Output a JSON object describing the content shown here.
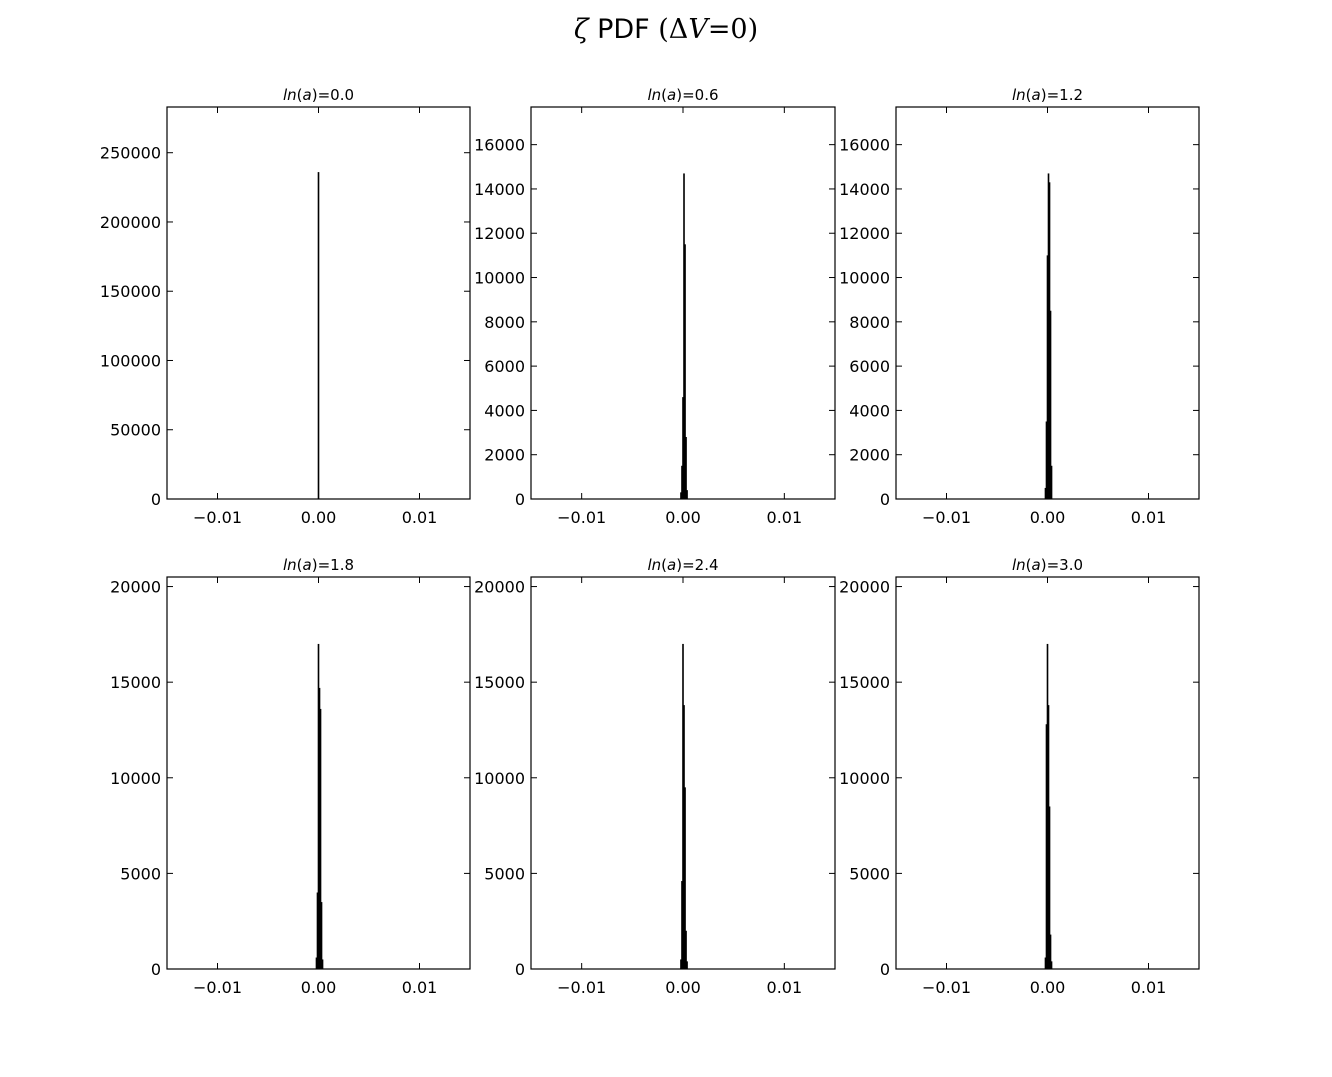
{
  "figure": {
    "title_symbol": "ζ",
    "title_text": "PDF",
    "title_math_open": "(Δ",
    "title_math_var": "V",
    "title_math_rest": "=0)"
  },
  "chart_data": [
    {
      "type": "bar",
      "title": "ln(a)=0.0",
      "xlim": [
        -0.015,
        0.015
      ],
      "ylim": [
        0,
        283000
      ],
      "xticks": [
        -0.01,
        0.0,
        0.01
      ],
      "xtick_labels": [
        "−0.01",
        "0.00",
        "0.01"
      ],
      "yticks": [
        0,
        50000,
        100000,
        150000,
        200000,
        250000
      ],
      "ytick_labels": [
        "0",
        "50000",
        "100000",
        "150000",
        "200000",
        "250000"
      ],
      "bins": [
        {
          "x": 0.0,
          "y": 236000
        }
      ],
      "grid": false
    },
    {
      "type": "bar",
      "title": "ln(a)=0.6",
      "xlim": [
        -0.015,
        0.015
      ],
      "ylim": [
        0,
        17700
      ],
      "xticks": [
        -0.01,
        0.0,
        0.01
      ],
      "xtick_labels": [
        "−0.01",
        "0.00",
        "0.01"
      ],
      "yticks": [
        0,
        2000,
        4000,
        6000,
        8000,
        10000,
        12000,
        14000,
        16000
      ],
      "ytick_labels": [
        "0",
        "2000",
        "4000",
        "6000",
        "8000",
        "10000",
        "12000",
        "14000",
        "16000"
      ],
      "bins": [
        {
          "x": -0.0002,
          "y": 300
        },
        {
          "x": -0.0001,
          "y": 1500
        },
        {
          "x": 0.0,
          "y": 4600
        },
        {
          "x": 0.0001,
          "y": 14700
        },
        {
          "x": 0.0002,
          "y": 11500
        },
        {
          "x": 0.0003,
          "y": 2800
        },
        {
          "x": 0.0004,
          "y": 400
        }
      ],
      "grid": false
    },
    {
      "type": "bar",
      "title": "ln(a)=1.2",
      "xlim": [
        -0.015,
        0.015
      ],
      "ylim": [
        0,
        17700
      ],
      "xticks": [
        -0.01,
        0.0,
        0.01
      ],
      "xtick_labels": [
        "−0.01",
        "0.00",
        "0.01"
      ],
      "yticks": [
        0,
        2000,
        4000,
        6000,
        8000,
        10000,
        12000,
        14000,
        16000
      ],
      "ytick_labels": [
        "0",
        "2000",
        "4000",
        "6000",
        "8000",
        "10000",
        "12000",
        "14000",
        "16000"
      ],
      "bins": [
        {
          "x": -0.0002,
          "y": 500
        },
        {
          "x": -0.0001,
          "y": 3500
        },
        {
          "x": 0.0,
          "y": 11000
        },
        {
          "x": 0.0001,
          "y": 14700
        },
        {
          "x": 0.0002,
          "y": 14300
        },
        {
          "x": 0.0003,
          "y": 8500
        },
        {
          "x": 0.0004,
          "y": 1500
        }
      ],
      "grid": false
    },
    {
      "type": "bar",
      "title": "ln(a)=1.8",
      "xlim": [
        -0.015,
        0.015
      ],
      "ylim": [
        0,
        20500
      ],
      "xticks": [
        -0.01,
        0.0,
        0.01
      ],
      "xtick_labels": [
        "−0.01",
        "0.00",
        "0.01"
      ],
      "yticks": [
        0,
        5000,
        10000,
        15000,
        20000
      ],
      "ytick_labels": [
        "0",
        "5000",
        "10000",
        "15000",
        "20000"
      ],
      "bins": [
        {
          "x": -0.0002,
          "y": 600
        },
        {
          "x": -0.0001,
          "y": 4000
        },
        {
          "x": 0.0,
          "y": 17000
        },
        {
          "x": 0.0001,
          "y": 14700
        },
        {
          "x": 0.0002,
          "y": 13600
        },
        {
          "x": 0.0003,
          "y": 3500
        },
        {
          "x": 0.0004,
          "y": 500
        }
      ],
      "grid": false
    },
    {
      "type": "bar",
      "title": "ln(a)=2.4",
      "xlim": [
        -0.015,
        0.015
      ],
      "ylim": [
        0,
        20500
      ],
      "xticks": [
        -0.01,
        0.0,
        0.01
      ],
      "xtick_labels": [
        "−0.01",
        "0.00",
        "0.01"
      ],
      "yticks": [
        0,
        5000,
        10000,
        15000,
        20000
      ],
      "ytick_labels": [
        "0",
        "5000",
        "10000",
        "15000",
        "20000"
      ],
      "bins": [
        {
          "x": -0.0002,
          "y": 500
        },
        {
          "x": -0.0001,
          "y": 4600
        },
        {
          "x": 0.0,
          "y": 17000
        },
        {
          "x": 0.0001,
          "y": 13800
        },
        {
          "x": 0.0002,
          "y": 9500
        },
        {
          "x": 0.0003,
          "y": 2000
        },
        {
          "x": 0.0004,
          "y": 400
        }
      ],
      "grid": false
    },
    {
      "type": "bar",
      "title": "ln(a)=3.0",
      "xlim": [
        -0.015,
        0.015
      ],
      "ylim": [
        0,
        20500
      ],
      "xticks": [
        -0.01,
        0.0,
        0.01
      ],
      "xtick_labels": [
        "−0.01",
        "0.00",
        "0.01"
      ],
      "yticks": [
        0,
        5000,
        10000,
        15000,
        20000
      ],
      "ytick_labels": [
        "0",
        "5000",
        "10000",
        "15000",
        "20000"
      ],
      "bins": [
        {
          "x": -0.0002,
          "y": 600
        },
        {
          "x": -0.0001,
          "y": 12800
        },
        {
          "x": 0.0,
          "y": 17000
        },
        {
          "x": 0.0001,
          "y": 13800
        },
        {
          "x": 0.0002,
          "y": 8500
        },
        {
          "x": 0.0003,
          "y": 1800
        },
        {
          "x": 0.0004,
          "y": 400
        }
      ],
      "grid": false
    }
  ]
}
